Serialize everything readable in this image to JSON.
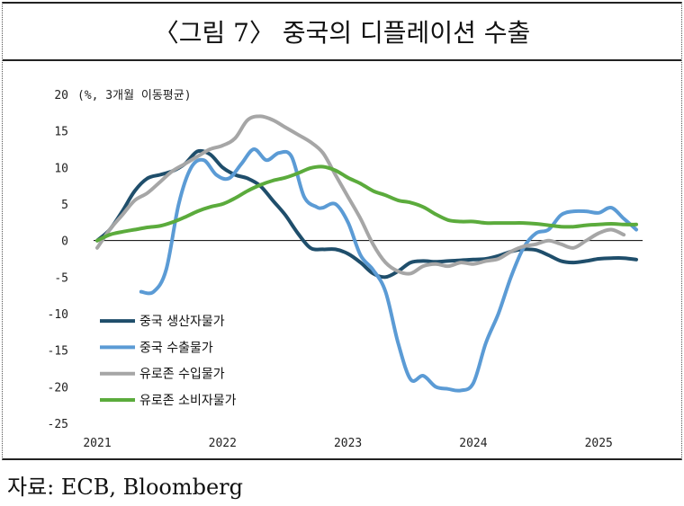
{
  "title": "〈그림 7〉 중국의 디플레이션 수출",
  "source": "자료: ECB, Bloomberg",
  "chart_data": {
    "type": "line",
    "unit_label": "(%, 3개월 이동평균)",
    "ylim": [
      -25,
      20
    ],
    "yticks": [
      20,
      15,
      10,
      5,
      0,
      -5,
      -10,
      -15,
      -20,
      -25
    ],
    "xlim": [
      2021.0,
      2025.35
    ],
    "xticks": [
      2021,
      2022,
      2023,
      2024,
      2025
    ],
    "legend_placement": "lower-left",
    "series": [
      {
        "name": "중국 생산자물가",
        "color": "#1f4e6b",
        "x": [
          2021.0,
          2021.1,
          2021.2,
          2021.3,
          2021.4,
          2021.5,
          2021.6,
          2021.7,
          2021.8,
          2021.9,
          2022.0,
          2022.1,
          2022.2,
          2022.3,
          2022.4,
          2022.5,
          2022.6,
          2022.7,
          2022.8,
          2022.9,
          2023.0,
          2023.1,
          2023.2,
          2023.3,
          2023.4,
          2023.5,
          2023.6,
          2023.7,
          2023.8,
          2023.9,
          2024.0,
          2024.1,
          2024.2,
          2024.3,
          2024.4,
          2024.5,
          2024.6,
          2024.7,
          2024.8,
          2024.9,
          2025.0,
          2025.1,
          2025.2,
          2025.3
        ],
        "values": [
          0,
          1.5,
          4,
          6.8,
          8.5,
          9,
          9.5,
          10.5,
          12.2,
          11.8,
          10,
          9,
          8.5,
          7.5,
          5.5,
          3.5,
          1,
          -1,
          -1.2,
          -1.2,
          -1.8,
          -3,
          -4.5,
          -5,
          -4.2,
          -3,
          -2.8,
          -2.9,
          -2.8,
          -2.7,
          -2.6,
          -2.5,
          -2.1,
          -1.5,
          -1.2,
          -1.3,
          -2,
          -2.8,
          -3,
          -2.8,
          -2.5,
          -2.4,
          -2.4,
          -2.6
        ]
      },
      {
        "name": "중국 수출물가",
        "color": "#5b9bd5",
        "x": [
          2021.35,
          2021.45,
          2021.55,
          2021.65,
          2021.75,
          2021.85,
          2021.95,
          2022.05,
          2022.15,
          2022.25,
          2022.35,
          2022.45,
          2022.55,
          2022.65,
          2022.75,
          2022.8,
          2022.9,
          2023.0,
          2023.1,
          2023.2,
          2023.3,
          2023.4,
          2023.5,
          2023.6,
          2023.7,
          2023.8,
          2023.9,
          2024.0,
          2024.1,
          2024.2,
          2024.3,
          2024.4,
          2024.5,
          2024.6,
          2024.7,
          2024.8,
          2024.9,
          2025.0,
          2025.1,
          2025.2,
          2025.3
        ],
        "values": [
          -7,
          -7,
          -4,
          5,
          10,
          11,
          9,
          8.5,
          10.5,
          12.5,
          11,
          12,
          11.5,
          6,
          4.6,
          4.5,
          5,
          2.5,
          -2,
          -4,
          -7,
          -14,
          -19,
          -18.5,
          -20,
          -20.3,
          -20.5,
          -19.5,
          -14,
          -10,
          -5,
          -1,
          1,
          1.5,
          3.5,
          4,
          4,
          3.8,
          4.5,
          3,
          1.5
        ]
      },
      {
        "name": "유로존 수입물가",
        "color": "#a6a6a6",
        "x": [
          2021.0,
          2021.1,
          2021.2,
          2021.3,
          2021.4,
          2021.5,
          2021.6,
          2021.7,
          2021.8,
          2021.9,
          2022.0,
          2022.1,
          2022.2,
          2022.3,
          2022.4,
          2022.5,
          2022.6,
          2022.7,
          2022.8,
          2022.9,
          2023.0,
          2023.1,
          2023.2,
          2023.3,
          2023.4,
          2023.5,
          2023.6,
          2023.7,
          2023.8,
          2023.9,
          2024.0,
          2024.1,
          2024.2,
          2024.3,
          2024.4,
          2024.5,
          2024.6,
          2024.7,
          2024.8,
          2024.9,
          2025.0,
          2025.1,
          2025.2
        ],
        "values": [
          -1,
          1.5,
          3.5,
          5.5,
          6.5,
          8,
          9.5,
          10.5,
          11.5,
          12.5,
          13,
          14,
          16.5,
          17,
          16.5,
          15.5,
          14.5,
          13.5,
          12,
          9,
          6,
          3,
          -0.5,
          -3,
          -4.2,
          -4.5,
          -3.5,
          -3.2,
          -3.5,
          -3.0,
          -3.2,
          -2.8,
          -2.5,
          -1.5,
          -0.8,
          -0.5,
          0,
          -0.5,
          -1,
          0,
          1,
          1.5,
          0.8
        ]
      },
      {
        "name": "유로존 소비자물가",
        "color": "#5bab3c",
        "x": [
          2021.0,
          2021.1,
          2021.2,
          2021.3,
          2021.4,
          2021.5,
          2021.6,
          2021.7,
          2021.8,
          2021.9,
          2022.0,
          2022.1,
          2022.2,
          2022.3,
          2022.4,
          2022.5,
          2022.6,
          2022.7,
          2022.8,
          2022.9,
          2023.0,
          2023.1,
          2023.2,
          2023.3,
          2023.4,
          2023.5,
          2023.6,
          2023.7,
          2023.8,
          2023.9,
          2024.0,
          2024.1,
          2024.2,
          2024.3,
          2024.4,
          2024.5,
          2024.6,
          2024.7,
          2024.8,
          2024.9,
          2025.0,
          2025.1,
          2025.2,
          2025.3
        ],
        "values": [
          0,
          0.8,
          1.2,
          1.5,
          1.8,
          2.0,
          2.5,
          3.2,
          4,
          4.6,
          5,
          5.8,
          6.8,
          7.6,
          8.2,
          8.6,
          9.2,
          9.9,
          10.1,
          9.6,
          8.6,
          7.8,
          6.8,
          6.2,
          5.5,
          5.2,
          4.6,
          3.6,
          2.8,
          2.6,
          2.6,
          2.4,
          2.4,
          2.4,
          2.4,
          2.3,
          2.1,
          1.9,
          1.9,
          2.1,
          2.2,
          2.3,
          2.2,
          2.2
        ]
      }
    ]
  }
}
